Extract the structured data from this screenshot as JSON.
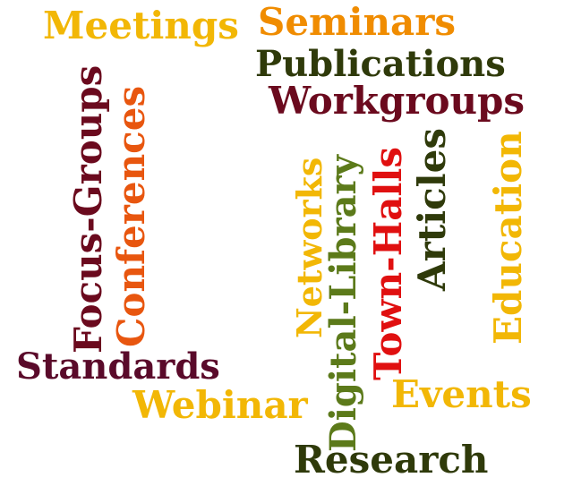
{
  "cloud": {
    "words": {
      "meetings": {
        "text": "Meetings",
        "color": "#f2b705"
      },
      "seminars": {
        "text": "Seminars",
        "color": "#f08c00"
      },
      "publications": {
        "text": "Publications",
        "color": "#2f3a0a"
      },
      "workgroups": {
        "text": "Workgroups",
        "color": "#6b0a1e"
      },
      "focus_groups": {
        "text": "Focus-Groups",
        "color": "#6b0a1e"
      },
      "conferences": {
        "text": "Conferences",
        "color": "#e8560f"
      },
      "networks": {
        "text": "Networks",
        "color": "#f2b705"
      },
      "digital_library": {
        "text": "Digital-Library",
        "color": "#5c7a1a"
      },
      "town_halls": {
        "text": "Town-Halls",
        "color": "#e01010"
      },
      "articles": {
        "text": "Articles",
        "color": "#2f3a0a"
      },
      "education": {
        "text": "Education",
        "color": "#f2b705"
      },
      "standards": {
        "text": "Standards",
        "color": "#5a0a2a"
      },
      "webinar": {
        "text": "Webinar",
        "color": "#f2b705"
      },
      "events": {
        "text": "Events",
        "color": "#f2b705"
      },
      "research": {
        "text": "Research",
        "color": "#2f3a0a"
      }
    }
  }
}
